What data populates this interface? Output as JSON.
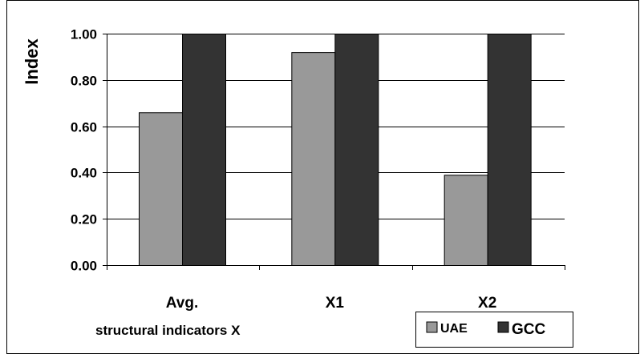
{
  "chart_data": {
    "type": "bar",
    "categories": [
      "Avg.",
      "X1",
      "X2"
    ],
    "series": [
      {
        "name": "UAE",
        "values": [
          0.66,
          0.92,
          0.39
        ],
        "color": "#999999"
      },
      {
        "name": "GCC",
        "values": [
          1.0,
          1.0,
          1.0
        ],
        "color": "#333333"
      }
    ],
    "ylabel": "Index",
    "xlabel": "structural indicators X",
    "ylim": [
      0,
      1
    ],
    "yticks": [
      "0.00",
      "0.20",
      "0.40",
      "0.60",
      "0.80",
      "1.00"
    ],
    "grid": true,
    "legend_position": "bottom-right"
  }
}
